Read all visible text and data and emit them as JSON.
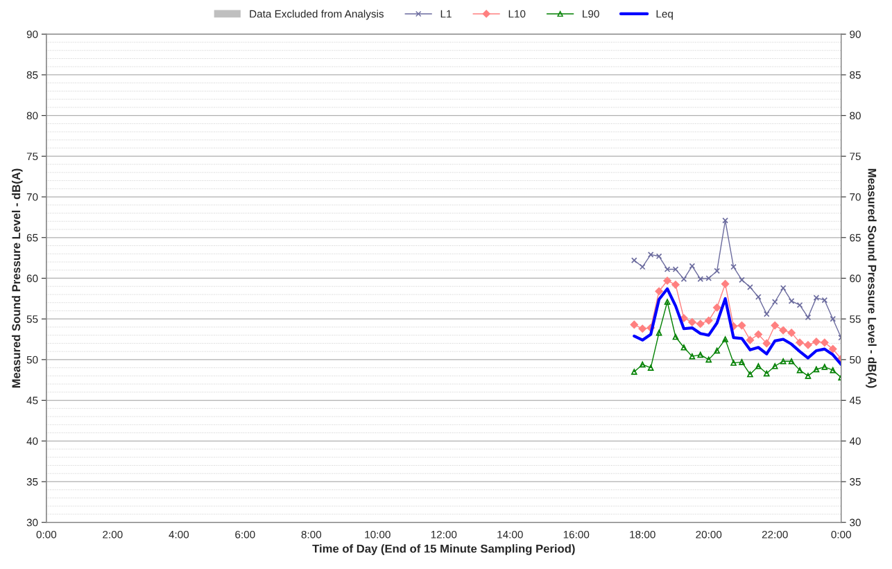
{
  "chart_data": {
    "type": "line",
    "xlabel": "Time of Day (End of 15 Minute Sampling Period)",
    "ylabel": "Measured Sound Pressure Level - dB(A)",
    "y2label": "Measured Sound Pressure Level - dB(A)",
    "x": [
      17.75,
      18.0,
      18.25,
      18.5,
      18.75,
      19.0,
      19.25,
      19.5,
      19.75,
      20.0,
      20.25,
      20.5,
      20.75,
      21.0,
      21.25,
      21.5,
      21.75,
      22.0,
      22.25,
      22.5,
      22.75,
      23.0,
      23.25,
      23.5,
      23.75,
      24.0
    ],
    "series": [
      {
        "name": "Data Excluded from Analysis",
        "type": "bar",
        "color": "#bfbfbf",
        "values": [
          null,
          null,
          null,
          null,
          null,
          null,
          null,
          null,
          null,
          null,
          null,
          null,
          null,
          null,
          null,
          null,
          null,
          null,
          null,
          null,
          null,
          null,
          null,
          null,
          null,
          null
        ]
      },
      {
        "name": "L1",
        "color": "#6b6b9e",
        "marker": "cross",
        "values": [
          62.2,
          61.4,
          62.9,
          62.7,
          61.1,
          61.1,
          59.9,
          61.5,
          59.9,
          60.0,
          60.9,
          67.1,
          61.4,
          59.8,
          58.9,
          57.7,
          55.6,
          57.1,
          58.8,
          57.2,
          56.7,
          55.2,
          57.6,
          57.3,
          55.0,
          52.7
        ]
      },
      {
        "name": "L10",
        "color": "#ff8080",
        "marker": "diamond",
        "values": [
          54.3,
          53.8,
          53.9,
          58.4,
          59.7,
          59.2,
          55.1,
          54.6,
          54.4,
          54.8,
          56.4,
          59.3,
          54.1,
          54.2,
          52.4,
          53.1,
          52.0,
          54.2,
          53.6,
          53.3,
          52.1,
          51.8,
          52.2,
          52.1,
          51.3,
          50.1
        ]
      },
      {
        "name": "L90",
        "color": "#008000",
        "marker": "triangle",
        "values": [
          48.5,
          49.4,
          49.0,
          53.3,
          57.1,
          52.8,
          51.5,
          50.4,
          50.6,
          50.0,
          51.1,
          52.5,
          49.6,
          49.7,
          48.2,
          49.2,
          48.3,
          49.2,
          49.8,
          49.8,
          48.7,
          48.0,
          48.8,
          49.1,
          48.7,
          47.8
        ]
      },
      {
        "name": "Leq",
        "color": "#0000ff",
        "marker": "none",
        "values": [
          52.9,
          52.4,
          53.1,
          57.4,
          58.7,
          56.6,
          53.8,
          53.9,
          53.2,
          53.0,
          54.5,
          57.5,
          52.7,
          52.6,
          51.2,
          51.5,
          50.7,
          52.3,
          52.5,
          51.9,
          51.0,
          50.2,
          51.1,
          51.3,
          50.6,
          49.4
        ]
      }
    ],
    "xlim": [
      0,
      24
    ],
    "xticks": [
      {
        "value": 0,
        "label": "0:00"
      },
      {
        "value": 2,
        "label": "2:00"
      },
      {
        "value": 4,
        "label": "4:00"
      },
      {
        "value": 6,
        "label": "6:00"
      },
      {
        "value": 8,
        "label": "8:00"
      },
      {
        "value": 10,
        "label": "10:00"
      },
      {
        "value": 12,
        "label": "12:00"
      },
      {
        "value": 14,
        "label": "14:00"
      },
      {
        "value": 16,
        "label": "16:00"
      },
      {
        "value": 18,
        "label": "18:00"
      },
      {
        "value": 20,
        "label": "20:00"
      },
      {
        "value": 22,
        "label": "22:00"
      },
      {
        "value": 24,
        "label": "0:00"
      }
    ],
    "ylim": [
      30,
      90
    ],
    "yticks": [
      30,
      35,
      40,
      45,
      50,
      55,
      60,
      65,
      70,
      75,
      80,
      85,
      90
    ],
    "y2lim": [
      30,
      90
    ],
    "y2ticks": [
      30,
      35,
      40,
      45,
      50,
      55,
      60,
      65,
      70,
      75,
      80,
      85,
      90
    ],
    "grid": "y",
    "legend": "top"
  }
}
